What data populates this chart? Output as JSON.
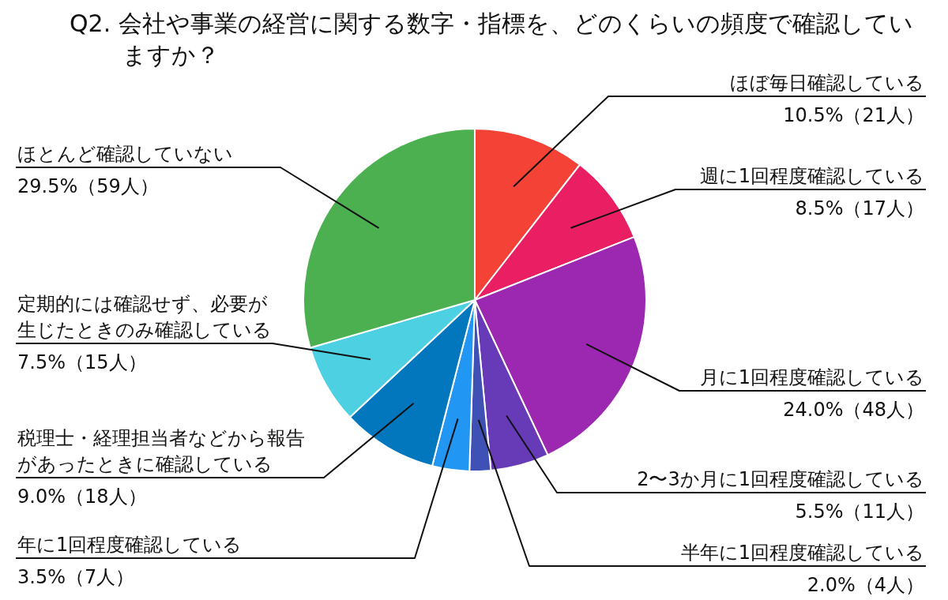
{
  "chart_data": {
    "type": "pie",
    "title": "Q2. 会社や事業の経営に関する数字・指標を、どのくらいの頻度で確認していますか？",
    "categories": [
      "ほぼ毎日確認している",
      "週に1回程度確認している",
      "月に1回程度確認している",
      "2〜3か月に1回程度確認している",
      "半年に1回程度確認している",
      "年に1回程度確認している",
      "税理士・経理担当者などから報告があったときに確認している",
      "定期的には確認せず、必要が生じたときのみ確認している",
      "ほとんど確認していない"
    ],
    "values": [
      10.5,
      8.5,
      24.0,
      5.5,
      2.0,
      3.5,
      9.0,
      7.5,
      29.5
    ],
    "value_labels": [
      "10.5%（21人）",
      "8.5%（17人）",
      "24.0%（48人）",
      "5.5%（11人）",
      "2.0%（4人）",
      "3.5%（7人）",
      "9.0%（18人）",
      "7.5%（15人）",
      "29.5%（59人）"
    ],
    "colors": [
      "#f44336",
      "#e91e63",
      "#9c27b0",
      "#673ab7",
      "#3f51b5",
      "#2196f3",
      "#0277bd",
      "#4dd0e1",
      "#4caf50"
    ],
    "legend": false
  }
}
